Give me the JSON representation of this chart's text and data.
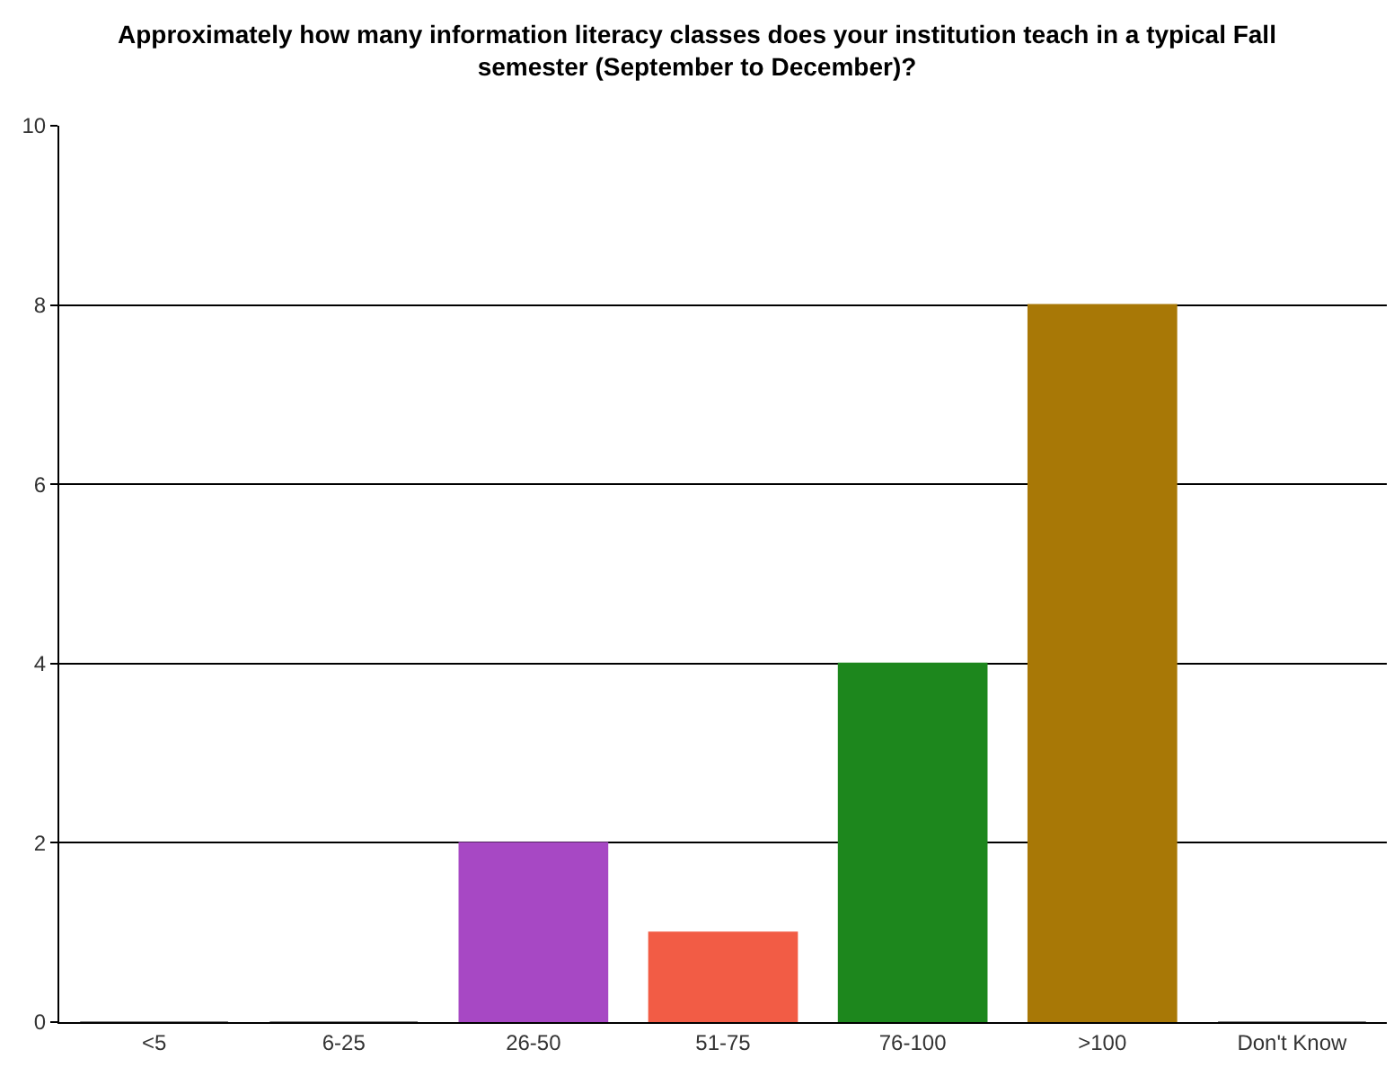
{
  "chart_data": {
    "type": "bar",
    "title": "Approximately how many information literacy classes does your institution teach in a typical Fall\nsemester (September to December)?",
    "categories": [
      "<5",
      "6-25",
      "26-50",
      "51-75",
      "76-100",
      ">100",
      "Don't Know"
    ],
    "values": [
      0,
      0,
      2,
      1,
      4,
      8,
      0
    ],
    "colors": [
      "#808080",
      "#808080",
      "#a748c4",
      "#f25c45",
      "#1d871d",
      "#a87806",
      "#808080"
    ],
    "ylim": [
      0,
      10
    ],
    "yticks": [
      0,
      2,
      4,
      6,
      8,
      10
    ],
    "grid": "y"
  }
}
